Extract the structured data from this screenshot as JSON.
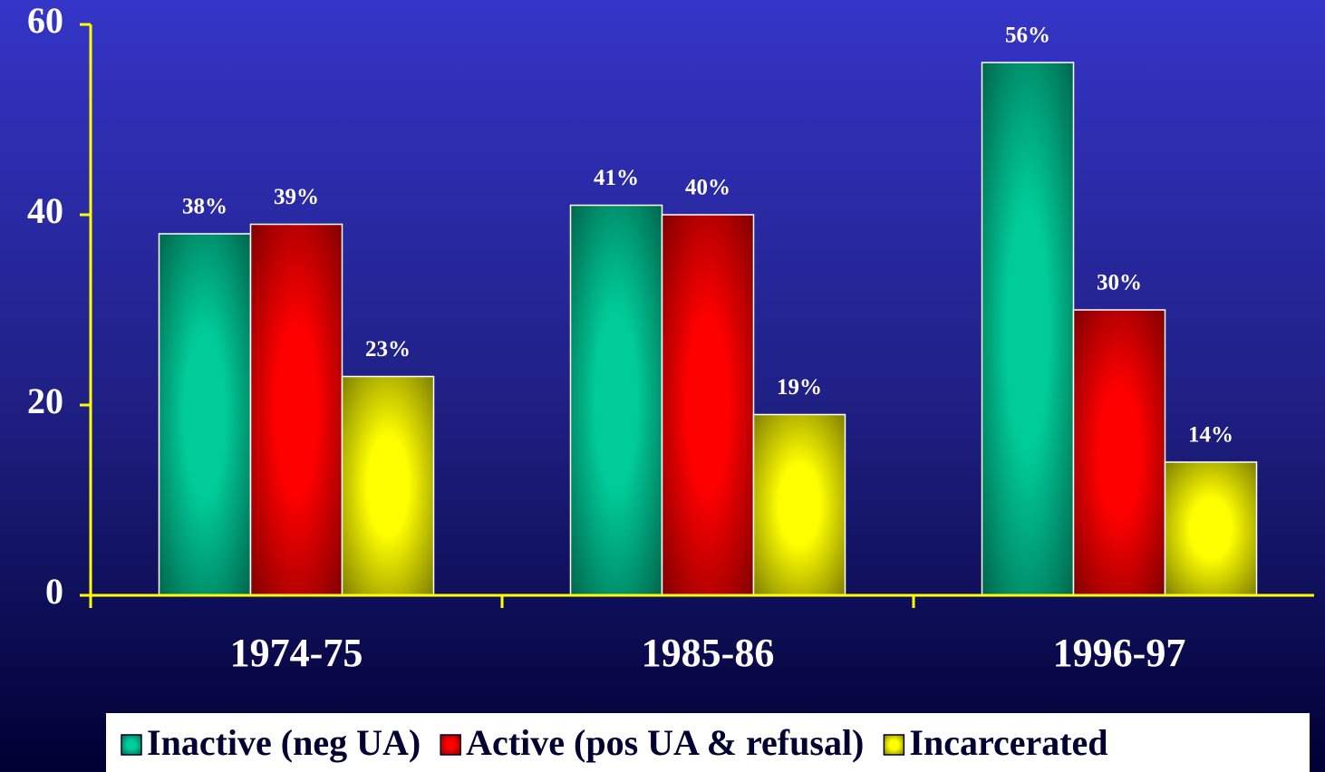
{
  "chart_data": {
    "type": "bar",
    "categories": [
      "1974-75",
      "1985-86",
      "1996-97"
    ],
    "series": [
      {
        "name": "Inactive (neg UA)",
        "color": "#00cc99",
        "values": [
          38,
          41,
          56
        ],
        "value_labels": [
          "38%",
          "41%",
          "56%"
        ]
      },
      {
        "name": "Active (pos UA & refusal)",
        "color": "#ff0000",
        "values": [
          39,
          40,
          30
        ],
        "value_labels": [
          "39%",
          "40%",
          "30%"
        ]
      },
      {
        "name": "Incarcerated",
        "color": "#ffff00",
        "values": [
          23,
          19,
          14
        ],
        "value_labels": [
          "23%",
          "19%",
          "14%"
        ]
      }
    ],
    "ylim": [
      0,
      60
    ],
    "yticks": [
      0,
      20,
      40,
      60
    ],
    "legend": "bottom"
  }
}
